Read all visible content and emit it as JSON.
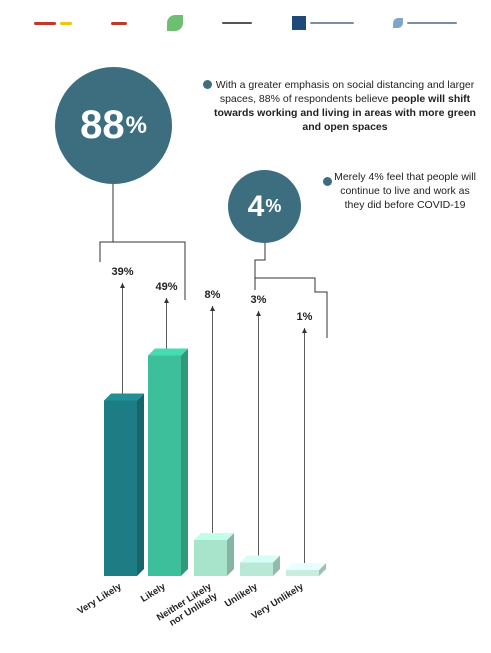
{
  "headline": {
    "big_value": "88",
    "big_unit": "%",
    "big_text_1": "With a greater emphasis on social distancing and larger spaces, 88% of respondents believe ",
    "big_text_bold": "people will shift towards working and living in areas with more green and open spaces",
    "small_value": "4",
    "small_unit": "%",
    "small_text": "Merely 4% feel that people will continue to live and work as they did before COVID-19"
  },
  "logos": [
    "partner-logo-1",
    "partner-logo-2",
    "citiis-logo",
    "cepf-cept-logo",
    "niua-logo",
    "project-impact-logo"
  ],
  "chart_data": {
    "type": "bar",
    "categories": [
      "Very Likely",
      "Likely",
      "Neither Likely nor Unlikely",
      "Unlikely",
      "Very Unlikely"
    ],
    "values": [
      39,
      49,
      8,
      3,
      1
    ],
    "value_labels": [
      "39%",
      "49%",
      "8%",
      "3%",
      "1%"
    ],
    "title": "",
    "xlabel": "",
    "ylabel": "",
    "ylim": [
      0,
      55
    ],
    "grid": false,
    "colors": [
      "#1e7d84",
      "#3cbf9a",
      "#a8e3cc",
      "#b9e8d6",
      "#c9eee0"
    ]
  }
}
